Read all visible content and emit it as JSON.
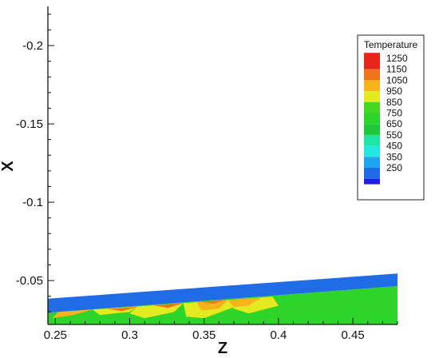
{
  "chart_data": {
    "type": "heatmap",
    "xlabel": "Z",
    "ylabel": "X",
    "xlim": [
      0.245,
      0.48
    ],
    "ylim": [
      -0.022,
      -0.225
    ],
    "x_ticks": [
      0.25,
      0.3,
      0.35,
      0.4,
      0.45
    ],
    "x_tick_labels": [
      "0.25",
      "0.3",
      "0.35",
      "0.4",
      "0.45"
    ],
    "y_ticks": [
      -0.2,
      -0.15,
      -0.1,
      -0.05
    ],
    "y_tick_labels": [
      "-0.2",
      "-0.15",
      "-0.1",
      "-0.05"
    ],
    "grid": false,
    "legend": {
      "title": "Temperature",
      "placement": "top-right",
      "levels": [
        {
          "label": "1250",
          "color": "#e8251a"
        },
        {
          "label": "1150",
          "color": "#f2741a"
        },
        {
          "label": "1050",
          "color": "#f7b21c"
        },
        {
          "label": "950",
          "color": "#e3ea1f"
        },
        {
          "label": "850",
          "color": "#43d81f"
        },
        {
          "label": "750",
          "color": "#2ed42a"
        },
        {
          "label": "650",
          "color": "#1ec83a"
        },
        {
          "label": "550",
          "color": "#1ee6a0"
        },
        {
          "label": "450",
          "color": "#22e6e0"
        },
        {
          "label": "350",
          "color": "#1ca6f0"
        },
        {
          "label": "250",
          "color": "#1f6ce6"
        }
      ],
      "extra_swatch_color": "#1e1ee0"
    },
    "regions": {
      "cooling_band": {
        "color": "#1f6ce6",
        "polygon": [
          [
            0.245,
            -0.0385
          ],
          [
            0.48,
            -0.0545
          ],
          [
            0.48,
            -0.0465
          ],
          [
            0.245,
            -0.0295
          ]
        ]
      },
      "gas_domain": {
        "color": "#2fd42a",
        "polygon": [
          [
            0.245,
            -0.0295
          ],
          [
            0.48,
            -0.0465
          ],
          [
            0.48,
            -0.022
          ],
          [
            0.245,
            -0.022
          ]
        ]
      },
      "hot_zones": [
        {
          "color": "#f7b21c",
          "polygon": [
            [
              0.252,
              -0.03
            ],
            [
              0.275,
              -0.0315
            ],
            [
              0.262,
              -0.028
            ],
            [
              0.248,
              -0.026
            ]
          ]
        },
        {
          "color": "#e3ea1f",
          "polygon": [
            [
              0.275,
              -0.0315
            ],
            [
              0.305,
              -0.0335
            ],
            [
              0.3,
              -0.03
            ],
            [
              0.28,
              -0.028
            ]
          ]
        },
        {
          "color": "#f2741a",
          "polygon": [
            [
              0.285,
              -0.0318
            ],
            [
              0.306,
              -0.0334
            ],
            [
              0.295,
              -0.0305
            ]
          ]
        },
        {
          "color": "#e3ea1f",
          "polygon": [
            [
              0.305,
              -0.0335
            ],
            [
              0.336,
              -0.0356
            ],
            [
              0.33,
              -0.03
            ],
            [
              0.31,
              -0.026
            ],
            [
              0.3,
              -0.029
            ]
          ]
        },
        {
          "color": "#f2741a",
          "polygon": [
            [
              0.316,
              -0.0342
            ],
            [
              0.336,
              -0.0356
            ],
            [
              0.326,
              -0.0325
            ]
          ]
        },
        {
          "color": "#e3ea1f",
          "polygon": [
            [
              0.336,
              -0.0356
            ],
            [
              0.366,
              -0.0376
            ],
            [
              0.37,
              -0.033
            ],
            [
              0.35,
              -0.026
            ],
            [
              0.338,
              -0.027
            ]
          ]
        },
        {
          "color": "#f7b21c",
          "polygon": [
            [
              0.345,
              -0.0362
            ],
            [
              0.366,
              -0.0376
            ],
            [
              0.36,
              -0.032
            ],
            [
              0.348,
              -0.031
            ]
          ]
        },
        {
          "color": "#f2741a",
          "polygon": [
            [
              0.348,
              -0.0365
            ],
            [
              0.364,
              -0.0375
            ],
            [
              0.356,
              -0.0352
            ]
          ]
        },
        {
          "color": "#e3ea1f",
          "polygon": [
            [
              0.366,
              -0.0376
            ],
            [
              0.396,
              -0.0397
            ],
            [
              0.4,
              -0.034
            ],
            [
              0.38,
              -0.029
            ],
            [
              0.37,
              -0.032
            ]
          ]
        },
        {
          "color": "#f7b21c",
          "polygon": [
            [
              0.366,
              -0.0376
            ],
            [
              0.388,
              -0.0391
            ],
            [
              0.38,
              -0.034
            ],
            [
              0.37,
              -0.033
            ]
          ]
        }
      ]
    }
  }
}
